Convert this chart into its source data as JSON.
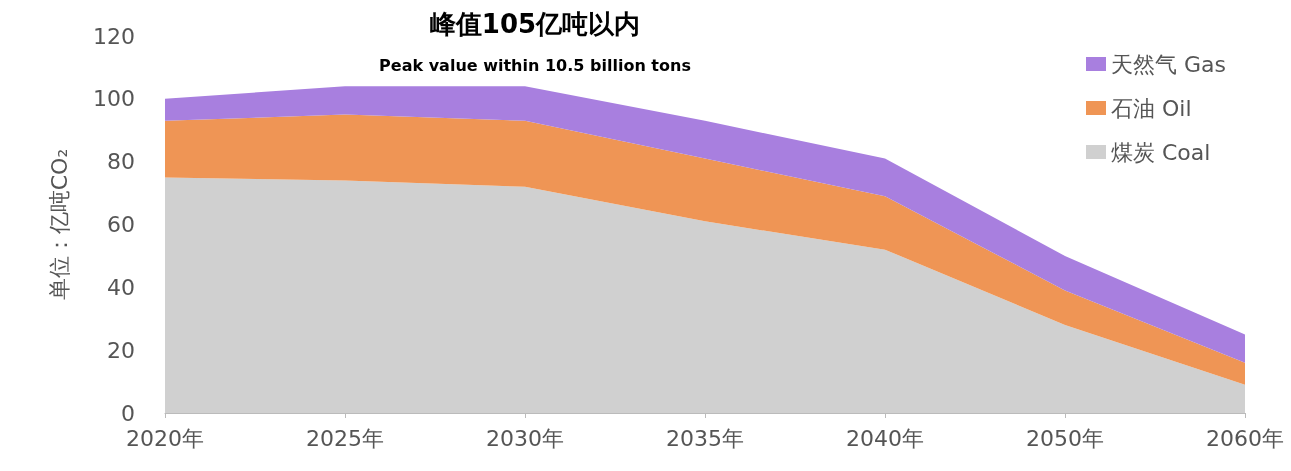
{
  "chart_data": {
    "type": "area",
    "stacked": true,
    "title": "峰值105亿吨以内",
    "subtitle": "Peak value within 10.5 billion tons",
    "ylabel": "单位：亿吨CO₂",
    "categories": [
      "2020年",
      "2025年",
      "2030年",
      "2035年",
      "2040年",
      "2050年",
      "2060年"
    ],
    "series": [
      {
        "name": "煤炭 Coal",
        "color": "#d0d0d0",
        "values": [
          75,
          74,
          72,
          61,
          52,
          28,
          9
        ]
      },
      {
        "name": "石油 Oil",
        "color": "#ef9555",
        "values": [
          18,
          21,
          21,
          20,
          17,
          11,
          7
        ]
      },
      {
        "name": "天然气 Gas",
        "color": "#a87fdf",
        "values": [
          7,
          9,
          11,
          12,
          12,
          11,
          9
        ]
      }
    ],
    "ylim": [
      0,
      120
    ],
    "yticks": [
      0,
      20,
      40,
      60,
      80,
      100,
      120
    ],
    "grid": false,
    "legend": "top right",
    "marker": "none"
  }
}
